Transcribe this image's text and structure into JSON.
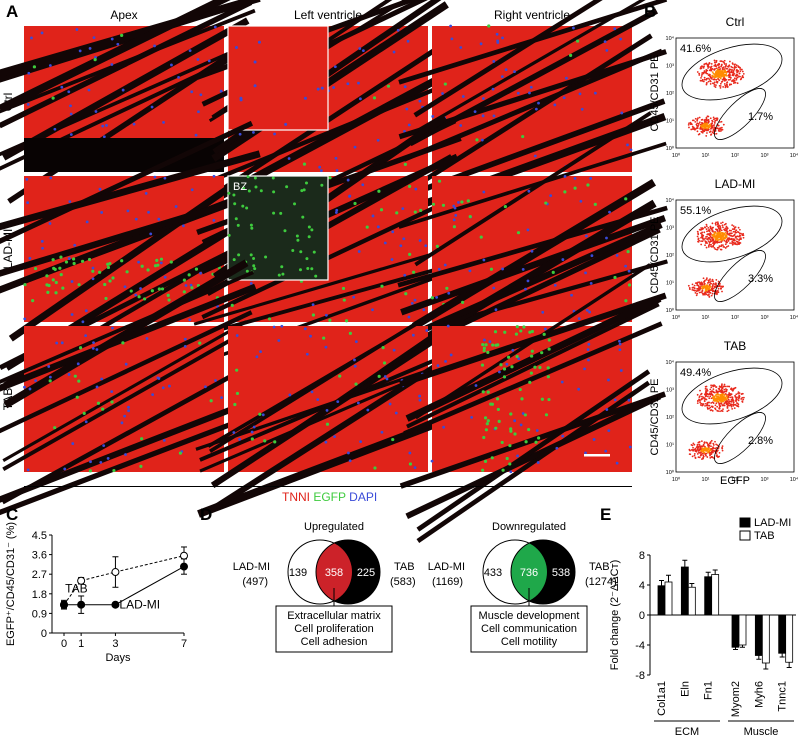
{
  "panel_labels": {
    "a": "A",
    "b": "B",
    "c": "C",
    "d": "D",
    "e": "E"
  },
  "panelA": {
    "columns": [
      "Apex",
      "Left ventricle",
      "Right ventricle"
    ],
    "rows": [
      "Ctrl",
      "LAD-MI",
      "TAB"
    ],
    "inset_label": "BZ",
    "legend": {
      "tnni": "TNNI",
      "egfp": "EGFP",
      "dapi": "DAPI"
    },
    "colors": {
      "tnni": "#e0231a",
      "egfp": "#3ecb3e",
      "dapi": "#3a4bd8"
    }
  },
  "panelB": {
    "plots": [
      {
        "title": "Ctrl",
        "upper_pct": "41.6%",
        "lower_pct": "1.7%"
      },
      {
        "title": "LAD-MI",
        "upper_pct": "55.1%",
        "lower_pct": "3.3%"
      },
      {
        "title": "TAB",
        "upper_pct": "49.4%",
        "lower_pct": "2.8%"
      }
    ],
    "ylabel": "CD45/CD31 PE",
    "xlabel": "EGFP",
    "ticks": [
      "10⁰",
      "10¹",
      "10²",
      "10³",
      "10⁴"
    ]
  },
  "chart_data": [
    {
      "type": "line",
      "panel": "C",
      "xlabel": "Days",
      "ylabel": "EGFP⁺/CD45/CD31⁻ (%)",
      "x": [
        0,
        1,
        3,
        7
      ],
      "xticks": [
        "0",
        "1",
        "3",
        "7"
      ],
      "yticks": [
        "0",
        "0.9",
        "1.8",
        "2.7",
        "3.6",
        "4.5"
      ],
      "ylim": [
        0,
        4.5
      ],
      "series": [
        {
          "name": "TAB",
          "values": [
            1.3,
            2.4,
            2.8,
            3.55
          ],
          "errors": [
            0.2,
            0.15,
            0.7,
            0.4
          ],
          "marker": "open",
          "dashed": true
        },
        {
          "name": "LAD-MI",
          "values": [
            1.3,
            1.3,
            1.3,
            3.05
          ],
          "errors": [
            0.15,
            0.4,
            0.05,
            0.35
          ],
          "marker": "filled",
          "dashed": false
        }
      ]
    },
    {
      "type": "bar",
      "panel": "E",
      "ylabel": "Fold change (2⁻ΔΔCт)",
      "categories": [
        "Col1a1",
        "Eln",
        "Fn1",
        "Myom2",
        "Myh6",
        "Tnnc1"
      ],
      "groups": [
        {
          "label": "ECM",
          "count": 3
        },
        {
          "label": "Muscle",
          "count": 3
        }
      ],
      "yticks": [
        "-8",
        "-4",
        "0",
        "4",
        "8"
      ],
      "ylim": [
        -8,
        8
      ],
      "series": [
        {
          "name": "LAD-MI",
          "values": [
            3.9,
            6.4,
            5.1,
            -4.3,
            -5.4,
            -5.1
          ],
          "errors": [
            0.7,
            0.9,
            0.6,
            0.3,
            0.5,
            0.5
          ]
        },
        {
          "name": "TAB",
          "values": [
            4.4,
            3.7,
            5.4,
            -4.0,
            -6.4,
            -6.3
          ],
          "errors": [
            0.9,
            0.5,
            0.6,
            0.3,
            0.8,
            0.7
          ]
        }
      ]
    }
  ],
  "panelD": {
    "venns": [
      {
        "title": "Upregulated",
        "left_label": "LAD-MI",
        "left_total": "(497)",
        "left_only": "139",
        "overlap": "358",
        "right_only": "225",
        "right_label": "TAB",
        "right_total": "(583)",
        "box": [
          "Extracellular matrix",
          "Cell proliferation",
          "Cell adhesion"
        ],
        "overlap_color": "#cc2229"
      },
      {
        "title": "Downregulated",
        "left_label": "LAD-MI",
        "left_total": "(1169)",
        "left_only": "433",
        "overlap": "736",
        "right_only": "538",
        "right_label": "TAB",
        "right_total": "(1274)",
        "box": [
          "Muscle development",
          "Cell communication",
          "Cell motility"
        ],
        "overlap_color": "#1fa84a"
      }
    ]
  }
}
